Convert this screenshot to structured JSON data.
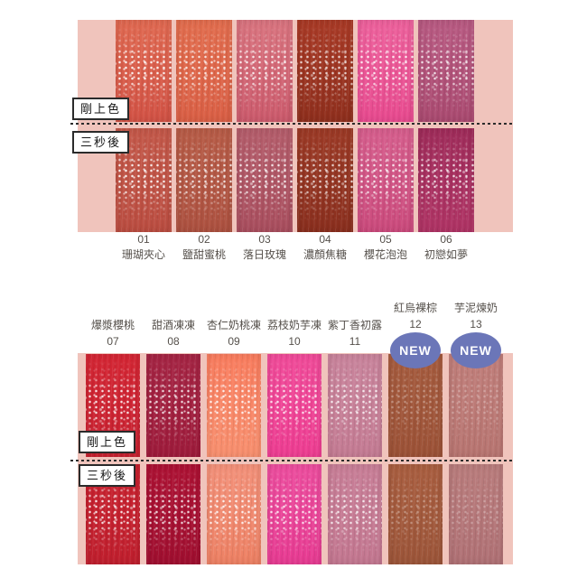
{
  "canvas": {
    "background": "#ffffff",
    "panel_color": "#f0c4bc",
    "dash_color": "#2b2b2b",
    "text_color": "#55504b"
  },
  "row_labels": {
    "applied": "剛上色",
    "after": "三秒後"
  },
  "badge": {
    "label": "NEW",
    "color": "#6b76b8",
    "text_color": "#ffffff"
  },
  "top_section": {
    "shades": [
      {
        "num": "01",
        "name": "珊瑚夾心",
        "row1": [
          "#e06951",
          "#d25245"
        ],
        "row2": [
          "#c35849",
          "#bb4d41"
        ],
        "sparkle": 0.95
      },
      {
        "num": "02",
        "name": "鹽甜蜜桃",
        "row1": [
          "#e26d4e",
          "#da5f45"
        ],
        "row2": [
          "#b75c47",
          "#ad5140"
        ],
        "sparkle": 0.85
      },
      {
        "num": "03",
        "name": "落日玫瑰",
        "row1": [
          "#d9747f",
          "#cc5a6c"
        ],
        "row2": [
          "#b45d6b",
          "#a94e5e"
        ],
        "sparkle": 0.9
      },
      {
        "num": "04",
        "name": "濃顏焦糖",
        "row1": [
          "#a93a26",
          "#8f2f1d"
        ],
        "row2": [
          "#9c3a26",
          "#8a2f1e"
        ],
        "sparkle": 0.8
      },
      {
        "num": "05",
        "name": "櫻花泡泡",
        "row1": [
          "#ed619c",
          "#e84a8f"
        ],
        "row2": [
          "#d65e8d",
          "#cb4a7c"
        ],
        "sparkle": 0.9
      },
      {
        "num": "06",
        "name": "初戀如夢",
        "row1": [
          "#b85a82",
          "#aa4a70"
        ],
        "row2": [
          "#9f2c5a",
          "#b03465"
        ],
        "sparkle": 0.85
      }
    ]
  },
  "bottom_section": {
    "shades": [
      {
        "num": "07",
        "name": "爆漿櫻桃",
        "row1": [
          "#d42634",
          "#c62130"
        ],
        "row2": [
          "#c8222f",
          "#c01f2e"
        ],
        "sparkle": 0.9
      },
      {
        "num": "08",
        "name": "甜酒凍凍",
        "row1": [
          "#a52544",
          "#9e1b3b"
        ],
        "row2": [
          "#ad1234",
          "#a00f30"
        ],
        "sparkle": 0.85
      },
      {
        "num": "09",
        "name": "杏仁奶桃凍",
        "row1": [
          "#f97c5e",
          "#f8906f"
        ],
        "row2": [
          "#f3917a",
          "#ed8063"
        ],
        "sparkle": 0.9
      },
      {
        "num": "10",
        "name": "荔枝奶芋凍",
        "row1": [
          "#f04b99",
          "#ee3d92"
        ],
        "row2": [
          "#ec4d9e",
          "#e73b92"
        ],
        "sparkle": 0.85
      },
      {
        "num": "11",
        "name": "紫丁香初露",
        "row1": [
          "#c9849c",
          "#c47b93"
        ],
        "row2": [
          "#c87e97",
          "#c37790"
        ],
        "sparkle": 0.85
      },
      {
        "num": "12",
        "name": "紅烏裸棕",
        "new": true,
        "row1": [
          "#a55b3e",
          "#9c5237"
        ],
        "row2": [
          "#a95e40",
          "#9c5539"
        ],
        "sparkle": 0.35
      },
      {
        "num": "13",
        "name": "芋泥煉奶",
        "new": true,
        "row1": [
          "#c07e7a",
          "#b87571"
        ],
        "row2": [
          "#b97c7c",
          "#b07175"
        ],
        "sparkle": 0.3
      }
    ]
  }
}
